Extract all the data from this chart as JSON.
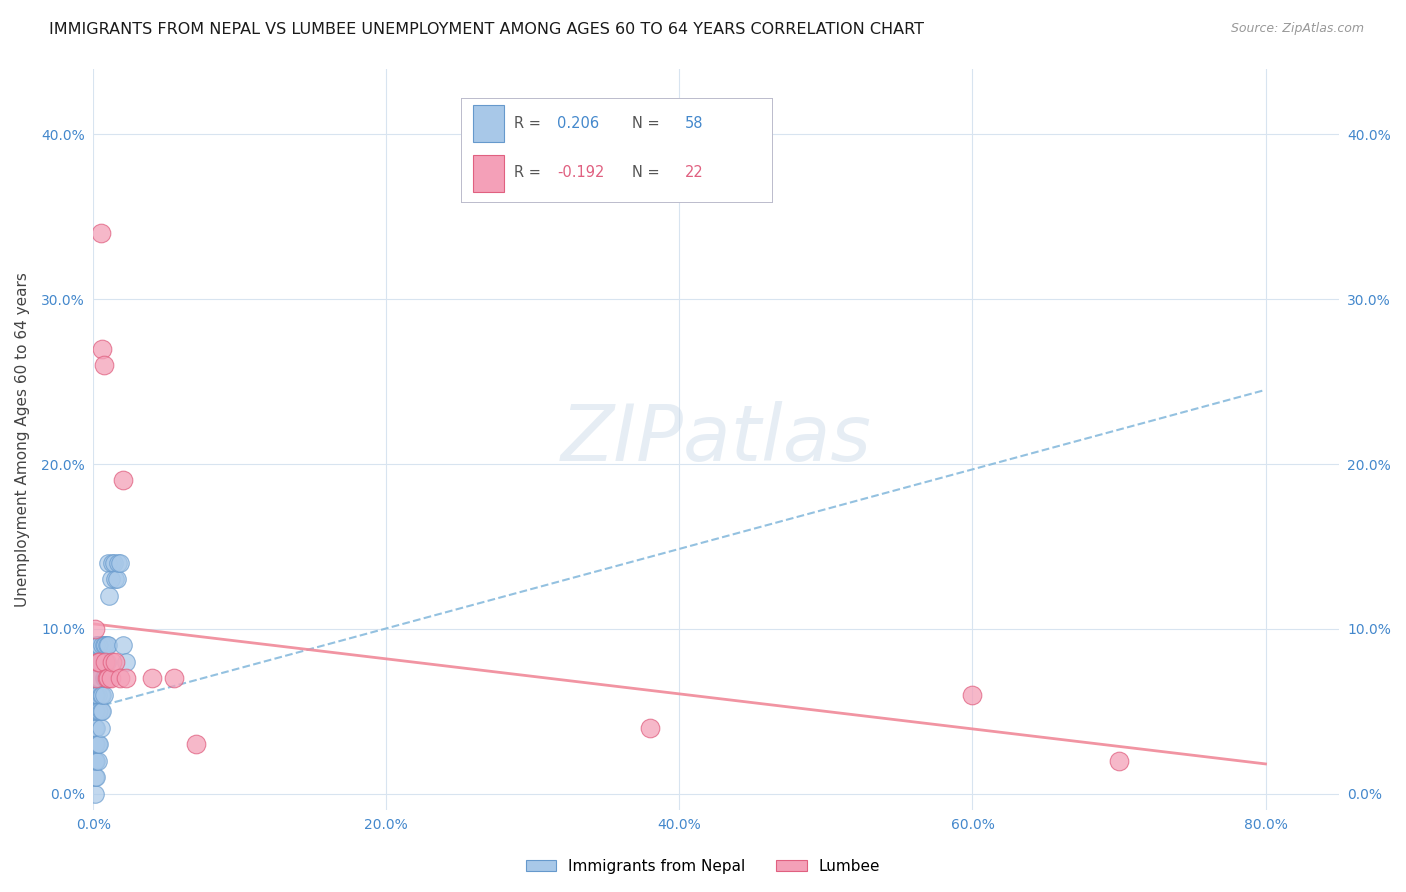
{
  "title": "IMMIGRANTS FROM NEPAL VS LUMBEE UNEMPLOYMENT AMONG AGES 60 TO 64 YEARS CORRELATION CHART",
  "source": "Source: ZipAtlas.com",
  "ylabel_label": "Unemployment Among Ages 60 to 64 years",
  "xlim": [
    0.0,
    0.85
  ],
  "ylim": [
    -0.01,
    0.44
  ],
  "xtick_vals": [
    0.0,
    0.2,
    0.4,
    0.6,
    0.8
  ],
  "xtick_labels": [
    "0.0%",
    "20.0%",
    "40.0%",
    "60.0%",
    "80.0%"
  ],
  "ytick_vals": [
    0.0,
    0.1,
    0.2,
    0.3,
    0.4
  ],
  "ytick_labels": [
    "0.0%",
    "10.0%",
    "20.0%",
    "30.0%",
    "40.0%"
  ],
  "nepal_color": "#a8c8e8",
  "nepal_edge_color": "#6699cc",
  "lumbee_color": "#f4a0b8",
  "lumbee_edge_color": "#e06080",
  "nepal_trend_color": "#88bbdd",
  "lumbee_trend_color": "#f08898",
  "nepal_R": "0.206",
  "nepal_N": "58",
  "lumbee_R": "-0.192",
  "lumbee_N": "22",
  "watermark": "ZIPatlas",
  "background_color": "#ffffff",
  "grid_color": "#d8e4f0",
  "tick_color": "#4488cc",
  "nepal_scatter_x": [
    0.001,
    0.001,
    0.001,
    0.001,
    0.001,
    0.001,
    0.001,
    0.001,
    0.001,
    0.001,
    0.002,
    0.002,
    0.002,
    0.002,
    0.002,
    0.002,
    0.002,
    0.002,
    0.002,
    0.003,
    0.003,
    0.003,
    0.003,
    0.003,
    0.003,
    0.003,
    0.004,
    0.004,
    0.004,
    0.004,
    0.004,
    0.005,
    0.005,
    0.005,
    0.005,
    0.006,
    0.006,
    0.006,
    0.006,
    0.007,
    0.007,
    0.007,
    0.008,
    0.008,
    0.009,
    0.009,
    0.01,
    0.01,
    0.011,
    0.012,
    0.013,
    0.014,
    0.015,
    0.016,
    0.017,
    0.018,
    0.02,
    0.022
  ],
  "nepal_scatter_y": [
    0.0,
    0.01,
    0.02,
    0.02,
    0.03,
    0.03,
    0.04,
    0.05,
    0.06,
    0.07,
    0.01,
    0.02,
    0.03,
    0.04,
    0.05,
    0.06,
    0.07,
    0.08,
    0.09,
    0.02,
    0.03,
    0.05,
    0.06,
    0.07,
    0.08,
    0.09,
    0.03,
    0.05,
    0.07,
    0.08,
    0.09,
    0.04,
    0.05,
    0.06,
    0.08,
    0.05,
    0.06,
    0.08,
    0.09,
    0.06,
    0.07,
    0.09,
    0.07,
    0.09,
    0.08,
    0.09,
    0.09,
    0.14,
    0.12,
    0.13,
    0.14,
    0.14,
    0.13,
    0.13,
    0.14,
    0.14,
    0.09,
    0.08
  ],
  "lumbee_scatter_x": [
    0.001,
    0.002,
    0.003,
    0.004,
    0.005,
    0.006,
    0.007,
    0.008,
    0.009,
    0.01,
    0.012,
    0.013,
    0.015,
    0.018,
    0.02,
    0.022,
    0.04,
    0.055,
    0.07,
    0.38,
    0.6,
    0.7
  ],
  "lumbee_scatter_y": [
    0.1,
    0.07,
    0.08,
    0.08,
    0.34,
    0.27,
    0.26,
    0.08,
    0.07,
    0.07,
    0.07,
    0.08,
    0.08,
    0.07,
    0.19,
    0.07,
    0.07,
    0.07,
    0.03,
    0.04,
    0.06,
    0.02
  ],
  "nepal_trend_x0": 0.0,
  "nepal_trend_x1": 0.8,
  "nepal_trend_y0": 0.052,
  "nepal_trend_y1": 0.245,
  "lumbee_trend_x0": 0.0,
  "lumbee_trend_x1": 0.8,
  "lumbee_trend_y0": 0.103,
  "lumbee_trend_y1": 0.018
}
